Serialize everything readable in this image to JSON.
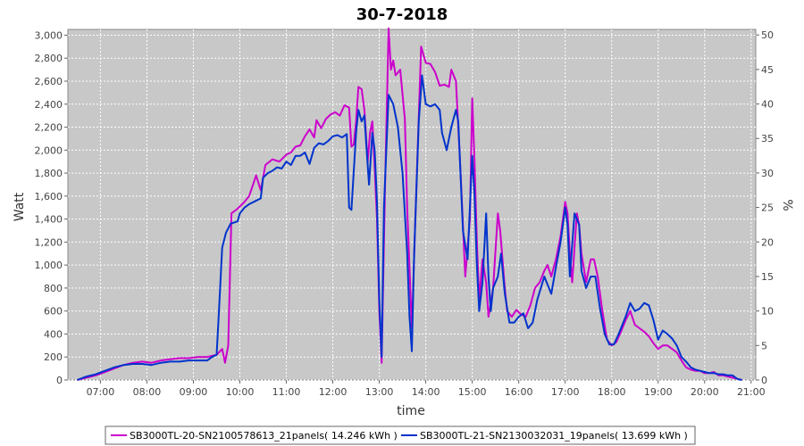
{
  "chart_data": {
    "type": "line",
    "title": "30-7-2018",
    "xlabel": "time",
    "ylabel": "Watt",
    "y2label": "%",
    "xlim": [
      6.3,
      21.1
    ],
    "ylim": [
      0,
      3050
    ],
    "y2lim": [
      0,
      50.8
    ],
    "x_ticks": [
      "07:00",
      "08:00",
      "09:00",
      "10:00",
      "11:00",
      "12:00",
      "13:00",
      "14:00",
      "15:00",
      "16:00",
      "17:00",
      "18:00",
      "19:00",
      "20:00",
      "21:00"
    ],
    "y_ticks": [
      "0",
      "200",
      "400",
      "600",
      "800",
      "1,000",
      "1,200",
      "1,400",
      "1,600",
      "1,800",
      "2,000",
      "2,200",
      "2,400",
      "2,600",
      "2,800",
      "3,000"
    ],
    "y2_ticks": [
      "0",
      "5",
      "10",
      "15",
      "20",
      "25",
      "30",
      "35",
      "40",
      "45",
      "50"
    ],
    "grid": true,
    "legend_position": "bottom",
    "colors": {
      "plot_bg": "#c8c8c8",
      "grid": "#ffffff",
      "series1": "#cc00cc",
      "series2": "#0033cc"
    },
    "series": [
      {
        "name": "SB3000TL-20-SN2100578613_21panels( 14.246 kWh )",
        "color": "#cc00cc",
        "points": [
          [
            6.5,
            0
          ],
          [
            6.7,
            20
          ],
          [
            6.9,
            40
          ],
          [
            7.1,
            70
          ],
          [
            7.3,
            100
          ],
          [
            7.5,
            130
          ],
          [
            7.7,
            150
          ],
          [
            7.9,
            160
          ],
          [
            8.1,
            150
          ],
          [
            8.3,
            170
          ],
          [
            8.5,
            180
          ],
          [
            8.7,
            190
          ],
          [
            8.9,
            190
          ],
          [
            9.1,
            200
          ],
          [
            9.3,
            200
          ],
          [
            9.5,
            220
          ],
          [
            9.62,
            270
          ],
          [
            9.68,
            150
          ],
          [
            9.75,
            300
          ],
          [
            9.82,
            1450
          ],
          [
            9.95,
            1490
          ],
          [
            10.1,
            1550
          ],
          [
            10.2,
            1600
          ],
          [
            10.3,
            1720
          ],
          [
            10.35,
            1780
          ],
          [
            10.45,
            1650
          ],
          [
            10.55,
            1870
          ],
          [
            10.7,
            1920
          ],
          [
            10.85,
            1900
          ],
          [
            11.0,
            1960
          ],
          [
            11.1,
            1980
          ],
          [
            11.2,
            2030
          ],
          [
            11.3,
            2040
          ],
          [
            11.4,
            2120
          ],
          [
            11.5,
            2180
          ],
          [
            11.6,
            2110
          ],
          [
            11.65,
            2260
          ],
          [
            11.75,
            2190
          ],
          [
            11.85,
            2270
          ],
          [
            11.95,
            2310
          ],
          [
            12.05,
            2330
          ],
          [
            12.15,
            2300
          ],
          [
            12.25,
            2390
          ],
          [
            12.35,
            2370
          ],
          [
            12.4,
            2030
          ],
          [
            12.45,
            2050
          ],
          [
            12.5,
            2250
          ],
          [
            12.55,
            2550
          ],
          [
            12.62,
            2530
          ],
          [
            12.68,
            2350
          ],
          [
            12.75,
            1900
          ],
          [
            12.8,
            2150
          ],
          [
            12.85,
            2250
          ],
          [
            12.9,
            1850
          ],
          [
            12.95,
            1400
          ],
          [
            13.0,
            600
          ],
          [
            13.05,
            150
          ],
          [
            13.12,
            1600
          ],
          [
            13.2,
            3060
          ],
          [
            13.25,
            2700
          ],
          [
            13.3,
            2780
          ],
          [
            13.35,
            2650
          ],
          [
            13.45,
            2700
          ],
          [
            13.55,
            2270
          ],
          [
            13.6,
            1500
          ],
          [
            13.7,
            450
          ],
          [
            13.8,
            1700
          ],
          [
            13.9,
            2900
          ],
          [
            14.0,
            2760
          ],
          [
            14.1,
            2750
          ],
          [
            14.2,
            2680
          ],
          [
            14.3,
            2560
          ],
          [
            14.4,
            2570
          ],
          [
            14.5,
            2550
          ],
          [
            14.55,
            2700
          ],
          [
            14.6,
            2650
          ],
          [
            14.65,
            2600
          ],
          [
            14.75,
            1800
          ],
          [
            14.85,
            900
          ],
          [
            14.95,
            1400
          ],
          [
            15.0,
            2450
          ],
          [
            15.05,
            1900
          ],
          [
            15.1,
            1200
          ],
          [
            15.15,
            700
          ],
          [
            15.22,
            1050
          ],
          [
            15.3,
            850
          ],
          [
            15.35,
            550
          ],
          [
            15.45,
            800
          ],
          [
            15.55,
            1450
          ],
          [
            15.6,
            1300
          ],
          [
            15.65,
            1050
          ],
          [
            15.7,
            800
          ],
          [
            15.75,
            600
          ],
          [
            15.85,
            550
          ],
          [
            15.95,
            610
          ],
          [
            16.05,
            570
          ],
          [
            16.15,
            550
          ],
          [
            16.25,
            650
          ],
          [
            16.35,
            800
          ],
          [
            16.45,
            850
          ],
          [
            16.55,
            950
          ],
          [
            16.62,
            1000
          ],
          [
            16.7,
            900
          ],
          [
            16.8,
            1050
          ],
          [
            16.9,
            1250
          ],
          [
            17.0,
            1550
          ],
          [
            17.05,
            1450
          ],
          [
            17.1,
            1100
          ],
          [
            17.15,
            850
          ],
          [
            17.25,
            1450
          ],
          [
            17.3,
            1350
          ],
          [
            17.35,
            1100
          ],
          [
            17.45,
            850
          ],
          [
            17.55,
            1050
          ],
          [
            17.62,
            1050
          ],
          [
            17.7,
            900
          ],
          [
            17.8,
            600
          ],
          [
            17.9,
            350
          ],
          [
            18.0,
            300
          ],
          [
            18.1,
            330
          ],
          [
            18.2,
            420
          ],
          [
            18.3,
            520
          ],
          [
            18.4,
            600
          ],
          [
            18.5,
            480
          ],
          [
            18.6,
            450
          ],
          [
            18.7,
            420
          ],
          [
            18.8,
            380
          ],
          [
            18.9,
            320
          ],
          [
            19.0,
            270
          ],
          [
            19.1,
            300
          ],
          [
            19.2,
            300
          ],
          [
            19.3,
            270
          ],
          [
            19.4,
            240
          ],
          [
            19.5,
            170
          ],
          [
            19.6,
            110
          ],
          [
            19.7,
            90
          ],
          [
            19.8,
            80
          ],
          [
            19.9,
            80
          ],
          [
            20.0,
            60
          ],
          [
            20.1,
            60
          ],
          [
            20.2,
            70
          ],
          [
            20.3,
            40
          ],
          [
            20.4,
            40
          ],
          [
            20.5,
            30
          ],
          [
            20.6,
            20
          ],
          [
            20.7,
            10
          ],
          [
            20.8,
            0
          ]
        ]
      },
      {
        "name": "SB3000TL-21-SN2130032031_19panels( 13.699 kWh )",
        "color": "#0033cc",
        "points": [
          [
            6.5,
            0
          ],
          [
            6.7,
            30
          ],
          [
            6.9,
            50
          ],
          [
            7.1,
            80
          ],
          [
            7.3,
            110
          ],
          [
            7.5,
            130
          ],
          [
            7.7,
            140
          ],
          [
            7.9,
            140
          ],
          [
            8.1,
            130
          ],
          [
            8.3,
            150
          ],
          [
            8.5,
            160
          ],
          [
            8.7,
            160
          ],
          [
            8.9,
            170
          ],
          [
            9.1,
            170
          ],
          [
            9.3,
            170
          ],
          [
            9.4,
            200
          ],
          [
            9.5,
            220
          ],
          [
            9.55,
            600
          ],
          [
            9.62,
            1150
          ],
          [
            9.7,
            1280
          ],
          [
            9.8,
            1360
          ],
          [
            9.95,
            1380
          ],
          [
            10.0,
            1450
          ],
          [
            10.1,
            1500
          ],
          [
            10.2,
            1530
          ],
          [
            10.3,
            1550
          ],
          [
            10.45,
            1580
          ],
          [
            10.5,
            1760
          ],
          [
            10.6,
            1800
          ],
          [
            10.7,
            1820
          ],
          [
            10.8,
            1850
          ],
          [
            10.9,
            1840
          ],
          [
            11.0,
            1900
          ],
          [
            11.1,
            1870
          ],
          [
            11.2,
            1950
          ],
          [
            11.3,
            1950
          ],
          [
            11.4,
            1980
          ],
          [
            11.5,
            1880
          ],
          [
            11.6,
            2020
          ],
          [
            11.7,
            2060
          ],
          [
            11.8,
            2050
          ],
          [
            11.9,
            2080
          ],
          [
            12.0,
            2120
          ],
          [
            12.1,
            2130
          ],
          [
            12.2,
            2110
          ],
          [
            12.3,
            2140
          ],
          [
            12.35,
            1500
          ],
          [
            12.4,
            1480
          ],
          [
            12.5,
            2150
          ],
          [
            12.55,
            2350
          ],
          [
            12.62,
            2250
          ],
          [
            12.68,
            2300
          ],
          [
            12.72,
            2050
          ],
          [
            12.78,
            1700
          ],
          [
            12.85,
            2150
          ],
          [
            12.9,
            2000
          ],
          [
            12.95,
            1550
          ],
          [
            13.0,
            700
          ],
          [
            13.05,
            200
          ],
          [
            13.1,
            1500
          ],
          [
            13.2,
            2480
          ],
          [
            13.3,
            2400
          ],
          [
            13.4,
            2200
          ],
          [
            13.5,
            1800
          ],
          [
            13.6,
            1100
          ],
          [
            13.65,
            550
          ],
          [
            13.7,
            250
          ],
          [
            13.75,
            1100
          ],
          [
            13.85,
            2250
          ],
          [
            13.92,
            2650
          ],
          [
            14.0,
            2400
          ],
          [
            14.1,
            2380
          ],
          [
            14.2,
            2400
          ],
          [
            14.3,
            2350
          ],
          [
            14.35,
            2150
          ],
          [
            14.45,
            2000
          ],
          [
            14.55,
            2200
          ],
          [
            14.65,
            2350
          ],
          [
            14.7,
            2250
          ],
          [
            14.8,
            1300
          ],
          [
            14.9,
            1050
          ],
          [
            15.0,
            1950
          ],
          [
            15.05,
            1600
          ],
          [
            15.1,
            1000
          ],
          [
            15.15,
            600
          ],
          [
            15.22,
            850
          ],
          [
            15.3,
            1450
          ],
          [
            15.35,
            900
          ],
          [
            15.4,
            600
          ],
          [
            15.45,
            800
          ],
          [
            15.55,
            900
          ],
          [
            15.62,
            1100
          ],
          [
            15.7,
            750
          ],
          [
            15.8,
            500
          ],
          [
            15.9,
            500
          ],
          [
            16.0,
            550
          ],
          [
            16.1,
            580
          ],
          [
            16.2,
            450
          ],
          [
            16.3,
            500
          ],
          [
            16.4,
            700
          ],
          [
            16.55,
            900
          ],
          [
            16.6,
            850
          ],
          [
            16.7,
            750
          ],
          [
            16.8,
            980
          ],
          [
            16.9,
            1200
          ],
          [
            17.0,
            1500
          ],
          [
            17.05,
            1350
          ],
          [
            17.1,
            900
          ],
          [
            17.2,
            1450
          ],
          [
            17.3,
            1350
          ],
          [
            17.35,
            950
          ],
          [
            17.45,
            800
          ],
          [
            17.55,
            900
          ],
          [
            17.65,
            900
          ],
          [
            17.75,
            620
          ],
          [
            17.85,
            400
          ],
          [
            17.95,
            310
          ],
          [
            18.05,
            310
          ],
          [
            18.15,
            400
          ],
          [
            18.3,
            550
          ],
          [
            18.4,
            670
          ],
          [
            18.5,
            600
          ],
          [
            18.6,
            620
          ],
          [
            18.7,
            670
          ],
          [
            18.8,
            650
          ],
          [
            18.9,
            520
          ],
          [
            19.0,
            350
          ],
          [
            19.1,
            430
          ],
          [
            19.2,
            400
          ],
          [
            19.3,
            360
          ],
          [
            19.4,
            300
          ],
          [
            19.5,
            200
          ],
          [
            19.6,
            160
          ],
          [
            19.7,
            110
          ],
          [
            19.8,
            90
          ],
          [
            19.9,
            80
          ],
          [
            20.0,
            70
          ],
          [
            20.1,
            60
          ],
          [
            20.2,
            60
          ],
          [
            20.3,
            50
          ],
          [
            20.4,
            50
          ],
          [
            20.5,
            40
          ],
          [
            20.6,
            40
          ],
          [
            20.7,
            10
          ],
          [
            20.8,
            0
          ]
        ]
      }
    ]
  }
}
